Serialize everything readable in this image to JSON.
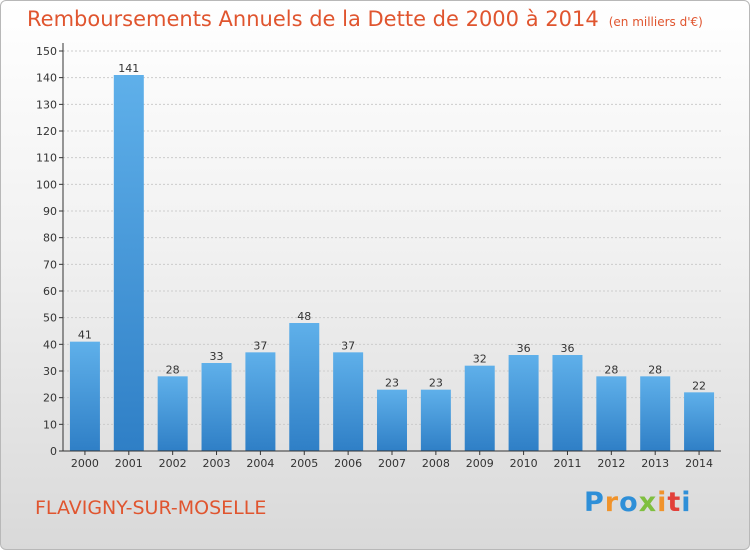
{
  "title": "Remboursements Annuels de la Dette de 2000 à 2014",
  "unit_note": "(en milliers d'€)",
  "commune": "FLAVIGNY-SUR-MOSELLE",
  "logo": {
    "text": "Proxiti",
    "letters": [
      "P",
      "r",
      "o",
      "x",
      "i",
      "t",
      "i"
    ],
    "colors": [
      "#2e8fd8",
      "#f0932b",
      "#2e8fd8",
      "#7fbf3f",
      "#f0932b",
      "#e2403a",
      "#2e8fd8"
    ]
  },
  "colors": {
    "bar_top": "#5fb0ea",
    "bar_bottom": "#2f7fc6",
    "title": "#e0552f",
    "axis": "#333333",
    "grid": "#cccccc"
  },
  "chart_data": {
    "type": "bar",
    "title": "Remboursements Annuels de la Dette de 2000 à 2014",
    "xlabel": "",
    "ylabel": "",
    "ylim": [
      0,
      150
    ],
    "ytick_step": 10,
    "categories": [
      "2000",
      "2001",
      "2002",
      "2003",
      "2004",
      "2005",
      "2006",
      "2007",
      "2008",
      "2009",
      "2010",
      "2011",
      "2012",
      "2013",
      "2014"
    ],
    "values": [
      41,
      141,
      28,
      33,
      37,
      48,
      37,
      23,
      23,
      32,
      36,
      36,
      28,
      28,
      22
    ]
  }
}
